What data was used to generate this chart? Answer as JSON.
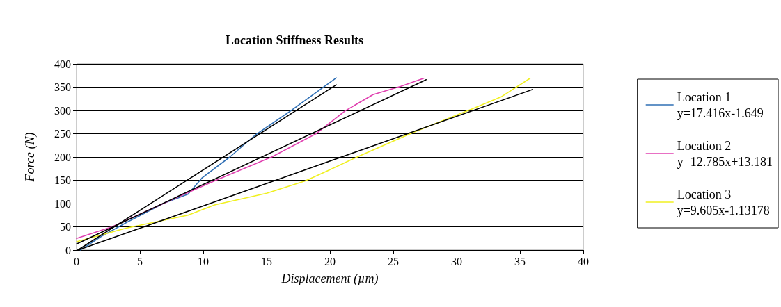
{
  "chart_data": {
    "type": "line",
    "title": "Location Stiffness Results",
    "xlabel": "Displacement (µm)",
    "ylabel": "Force (N)",
    "xlim": [
      0,
      40
    ],
    "xticks": [
      0,
      5,
      10,
      15,
      20,
      25,
      30,
      35,
      40
    ],
    "ylim": [
      0,
      400
    ],
    "yticks": [
      0,
      50,
      100,
      150,
      200,
      250,
      300,
      350,
      400
    ],
    "grid": "y",
    "legend": "right",
    "marker": "none",
    "line_style": "solid",
    "series": [
      {
        "name": "Location 1\ny=17.416x-1.649",
        "color": "#2f6fb5",
        "x": [
          0.3,
          2,
          4,
          6,
          7,
          8.8,
          9.9,
          12.1,
          14.1,
          16.9,
          20.5
        ],
        "values": [
          0,
          30,
          60,
          88,
          102,
          120,
          155,
          200,
          247,
          299,
          370
        ]
      },
      {
        "name": "Location 2\ny=12.785x+13.181",
        "color": "#e040b0",
        "x": [
          0,
          2.8,
          7,
          11,
          15.4,
          18.9,
          21.2,
          23.4,
          25.6,
          27.4
        ],
        "values": [
          25,
          50,
          102,
          150,
          200,
          250,
          299,
          334,
          352,
          369
        ]
      },
      {
        "name": "Location 3\ny=9.605x-1.13178",
        "color": "#f0f020",
        "x": [
          0,
          3.9,
          8.8,
          10.9,
          15,
          18,
          19.8,
          22.3,
          26.5,
          31.3,
          33.5,
          35.8
        ],
        "values": [
          18,
          47,
          75,
          97,
          122,
          148,
          170,
          202,
          252,
          304,
          329,
          369
        ]
      },
      {
        "color": "#000000",
        "x": [
          0.1,
          20.5
        ],
        "values": [
          0,
          355
        ]
      },
      {
        "color": "#000000",
        "x": [
          0,
          27.6
        ],
        "values": [
          13,
          366
        ]
      },
      {
        "color": "#000000",
        "x": [
          0.12,
          36
        ],
        "values": [
          0,
          345
        ]
      }
    ]
  }
}
